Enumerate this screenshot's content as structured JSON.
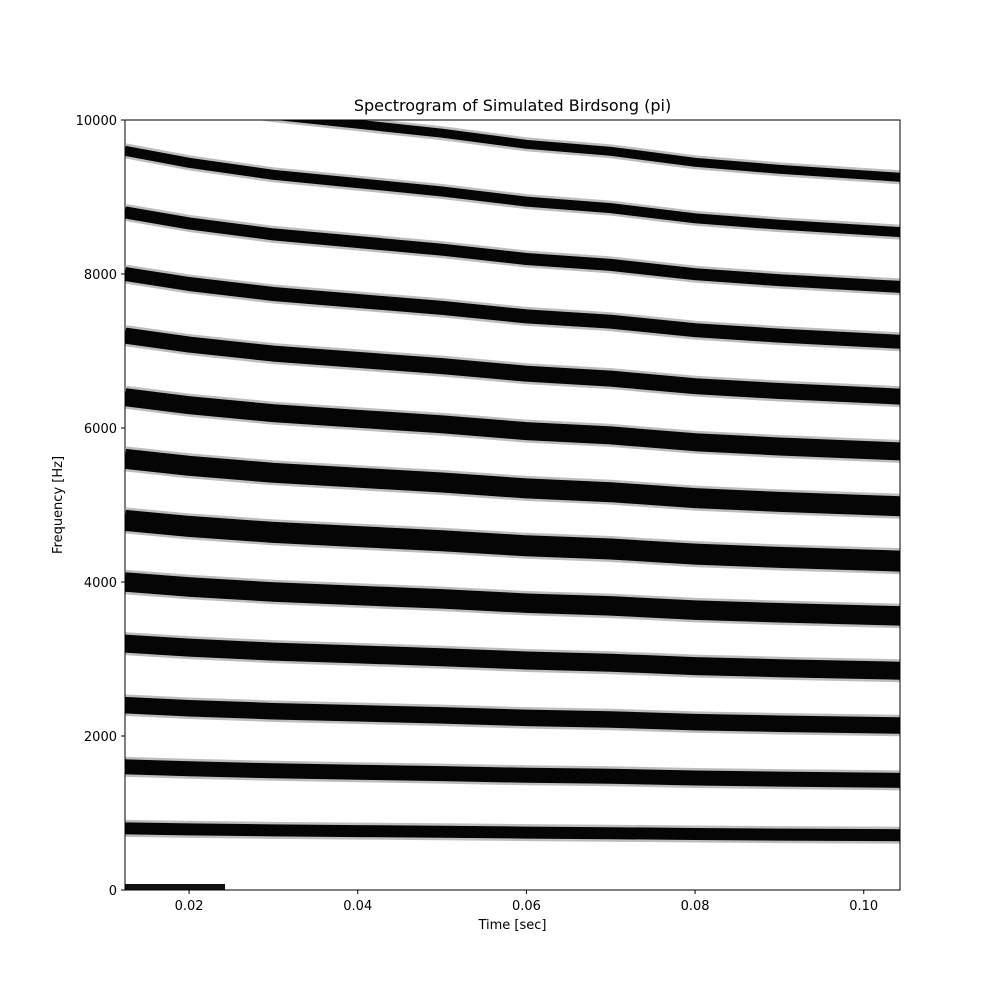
{
  "chart_data": {
    "type": "heatmap",
    "title": "Spectrogram of Simulated Birdsong (pi)",
    "xlabel": "Time [sec]",
    "ylabel": "Frequency [Hz]",
    "xlim": [
      0.0124,
      0.1043
    ],
    "ylim": [
      0,
      10000
    ],
    "xticks": [
      0.02,
      0.04,
      0.06,
      0.08,
      0.1
    ],
    "xtick_labels": [
      "0.02",
      "0.04",
      "0.06",
      "0.08",
      "0.10"
    ],
    "yticks": [
      0,
      2000,
      4000,
      6000,
      8000,
      10000
    ],
    "ytick_labels": [
      "0",
      "2000",
      "4000",
      "6000",
      "8000",
      "10000"
    ],
    "colormap": "greys",
    "grid": false,
    "harmonics": {
      "t": [
        0.0124,
        0.02,
        0.03,
        0.04,
        0.05,
        0.06,
        0.07,
        0.08,
        0.09,
        0.1043
      ],
      "fundamental_hz": [
        800,
        787,
        774,
        765,
        756,
        745,
        738,
        727,
        720,
        712
      ],
      "orders": [
        1,
        2,
        3,
        4,
        5,
        6,
        7,
        8,
        9,
        10,
        11,
        12,
        13
      ],
      "ridges": [
        {
          "order": 1,
          "freq_hz": [
            800,
            787,
            774,
            765,
            756,
            745,
            738,
            727,
            720,
            712
          ]
        },
        {
          "order": 2,
          "freq_hz": [
            1600,
            1574,
            1548,
            1530,
            1512,
            1490,
            1476,
            1454,
            1440,
            1424
          ]
        },
        {
          "order": 3,
          "freq_hz": [
            2400,
            2361,
            2322,
            2295,
            2268,
            2235,
            2214,
            2181,
            2160,
            2136
          ]
        },
        {
          "order": 4,
          "freq_hz": [
            3200,
            3148,
            3096,
            3060,
            3024,
            2980,
            2952,
            2908,
            2880,
            2848
          ]
        },
        {
          "order": 5,
          "freq_hz": [
            4000,
            3935,
            3870,
            3825,
            3780,
            3725,
            3690,
            3635,
            3600,
            3560
          ]
        },
        {
          "order": 6,
          "freq_hz": [
            4800,
            4722,
            4644,
            4590,
            4536,
            4470,
            4428,
            4362,
            4320,
            4272
          ]
        },
        {
          "order": 7,
          "freq_hz": [
            5600,
            5509,
            5418,
            5355,
            5292,
            5215,
            5166,
            5089,
            5040,
            4984
          ]
        },
        {
          "order": 8,
          "freq_hz": [
            6400,
            6296,
            6192,
            6120,
            6048,
            5960,
            5904,
            5816,
            5760,
            5696
          ]
        },
        {
          "order": 9,
          "freq_hz": [
            7200,
            7083,
            6966,
            6885,
            6804,
            6705,
            6642,
            6543,
            6480,
            6408
          ]
        },
        {
          "order": 10,
          "freq_hz": [
            8000,
            7870,
            7740,
            7650,
            7560,
            7450,
            7380,
            7270,
            7200,
            7120
          ]
        },
        {
          "order": 11,
          "freq_hz": [
            8800,
            8657,
            8514,
            8415,
            8316,
            8195,
            8118,
            7997,
            7920,
            7832
          ]
        },
        {
          "order": 12,
          "freq_hz": [
            9600,
            9444,
            9288,
            9180,
            9072,
            8940,
            8856,
            8724,
            8640,
            8544
          ]
        },
        {
          "order": 13,
          "freq_hz": [
            10400,
            10231,
            10062,
            9945,
            9828,
            9685,
            9594,
            9451,
            9360,
            9256
          ]
        }
      ]
    }
  }
}
